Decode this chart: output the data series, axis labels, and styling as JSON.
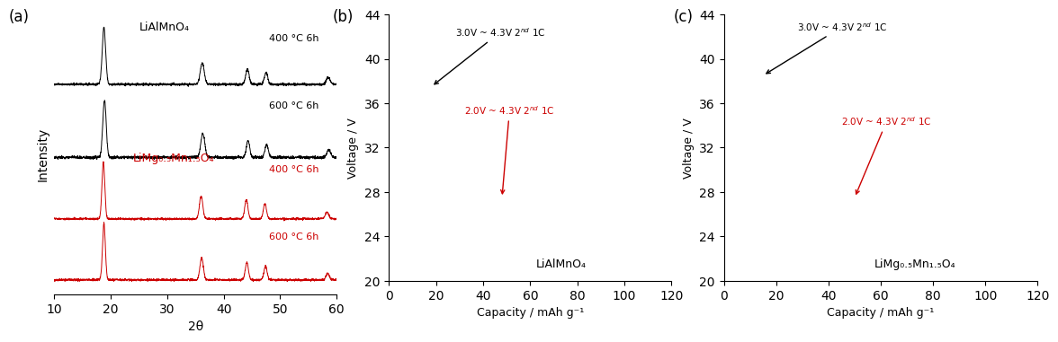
{
  "fig_width": 11.63,
  "fig_height": 3.71,
  "panel_a": {
    "label": "(a)",
    "xlabel": "2θ",
    "ylabel": "Intensity",
    "xlim": [
      10,
      60
    ],
    "xticks": [
      10,
      20,
      30,
      40,
      50,
      60
    ],
    "black_label_top": "LiAlMnO₄",
    "red_label": "LiMg₀.₅Mn₁.₅O₄",
    "annotations_black": [
      "400 °C 6h",
      "600 °C 6h"
    ],
    "annotations_red": [
      "400 °C 6h",
      "600 °C 6h"
    ]
  },
  "panel_b": {
    "label": "(b)",
    "xlabel": "Capacity / mAh g⁻¹",
    "ylabel": "Voltage / V",
    "xlim": [
      0,
      120
    ],
    "ylim": [
      20,
      44
    ],
    "yticks": [
      20,
      24,
      28,
      32,
      36,
      40,
      44
    ],
    "xticks": [
      0,
      20,
      40,
      60,
      80,
      100,
      120
    ],
    "annotation_black": "3.0V ~ 4.3V 2$^{nd}$ 1C",
    "annotation_red": "2.0V ~ 4.3V 2$^{nd}$ 1C",
    "label_bottom_right": "LiAlMnO₄"
  },
  "panel_c": {
    "label": "(c)",
    "xlabel": "Capacity / mAh g⁻¹",
    "ylabel": "Voltage / V",
    "xlim": [
      0,
      120
    ],
    "ylim": [
      20,
      44
    ],
    "yticks": [
      20,
      24,
      28,
      32,
      36,
      40,
      44
    ],
    "xticks": [
      0,
      20,
      40,
      60,
      80,
      100,
      120
    ],
    "annotation_black": "3.0V ~ 4.3V 2$^{nd}$ 1C",
    "annotation_red": "2.0V ~ 4.3V 2$^{nd}$ 1C",
    "label_bottom_right": "LiMg₀.₅Mn₁.₅O₄"
  },
  "black_color": "#000000",
  "red_color": "#cc0000"
}
